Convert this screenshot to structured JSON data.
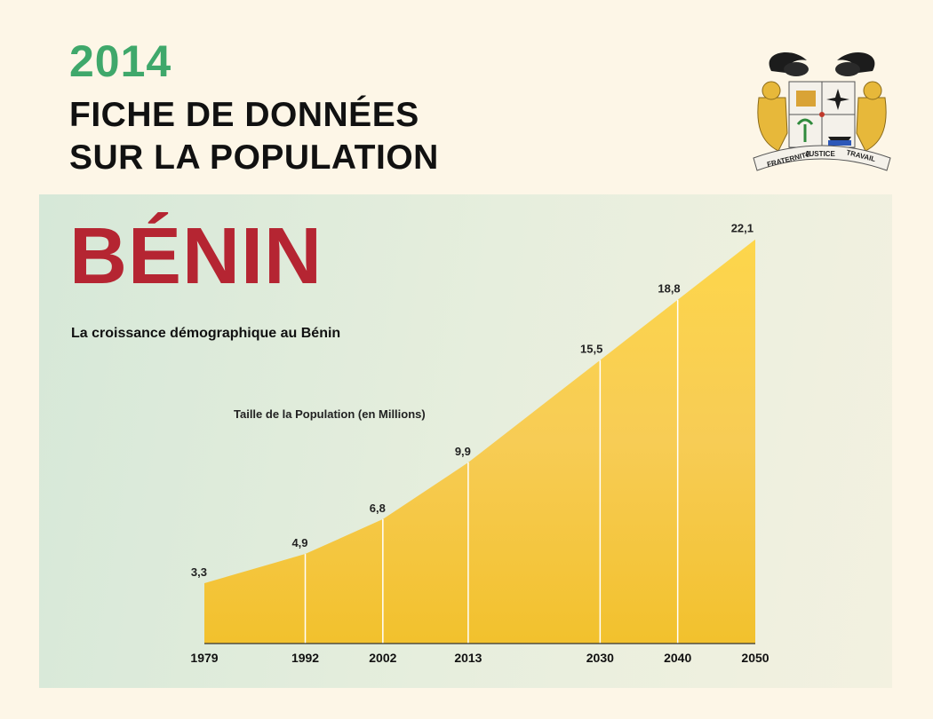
{
  "header": {
    "year": "2014",
    "title_line1": "FICHE DE DONNÉES",
    "title_line2": "SUR LA POPULATION",
    "emblem_motto": [
      "FRATERNITE",
      "JUSTICE",
      "TRAVAIL"
    ]
  },
  "country": "BÉNIN",
  "colors": {
    "year_green": "#3fa86b",
    "country_red": "#b52532",
    "area_top": "#fdd64b",
    "area_bottom": "#f2c12d"
  },
  "chart_data": {
    "type": "area",
    "title": "La croissance démographique au Bénin",
    "ylabel": "Taille de la Population (en Millions)",
    "xlabel": "",
    "x": [
      "1979",
      "1992",
      "2002",
      "2013",
      "2030",
      "2040",
      "2050"
    ],
    "values": [
      3.3,
      4.9,
      6.8,
      9.9,
      15.5,
      18.8,
      22.1
    ],
    "value_labels": [
      "3,3",
      "4,9",
      "6,8",
      "9,9",
      "15,5",
      "18,8",
      "22,1"
    ],
    "grid": false
  }
}
